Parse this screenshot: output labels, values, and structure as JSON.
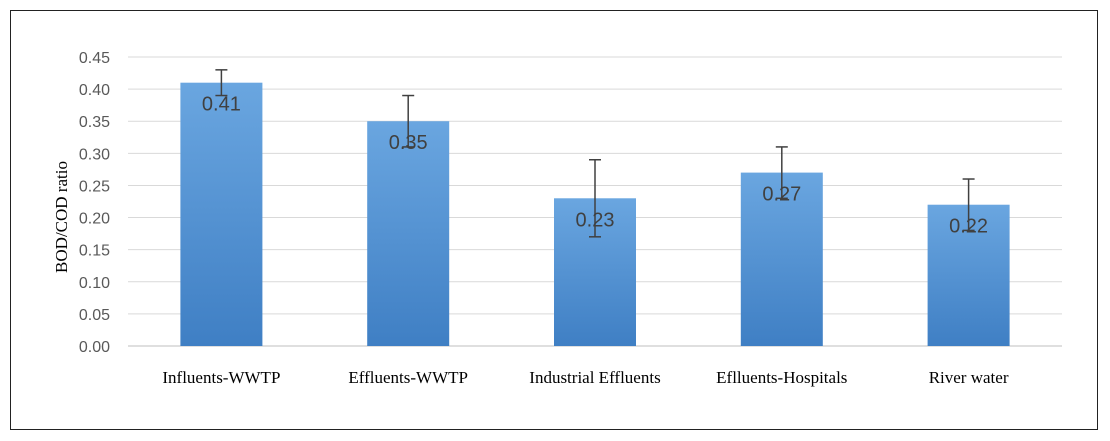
{
  "chart_data": {
    "type": "bar",
    "title": "",
    "xlabel": "",
    "ylabel": "BOD/COD ratio",
    "ylim": [
      0,
      0.45
    ],
    "ytick_step": 0.05,
    "grid": true,
    "legend": "none",
    "categories": [
      "Influents-WWTP",
      "Effluents-WWTP",
      "Industrial Effluents",
      "Eflluents-Hospitals",
      "River water"
    ],
    "values": [
      0.41,
      0.35,
      0.23,
      0.27,
      0.22
    ],
    "data_labels": [
      "0.41",
      "0.35",
      "0.23",
      "0.27",
      "0.22"
    ],
    "error_high": [
      0.43,
      0.39,
      0.29,
      0.31,
      0.26
    ],
    "error_low": [
      0.39,
      0.31,
      0.17,
      0.23,
      0.18
    ],
    "colors": {
      "bar_top": "#6aa6e0",
      "bar_bottom": "#3f7fc4",
      "grid": "#d9d9d9",
      "axis": "#bfbfbf",
      "error": "#404040"
    }
  }
}
